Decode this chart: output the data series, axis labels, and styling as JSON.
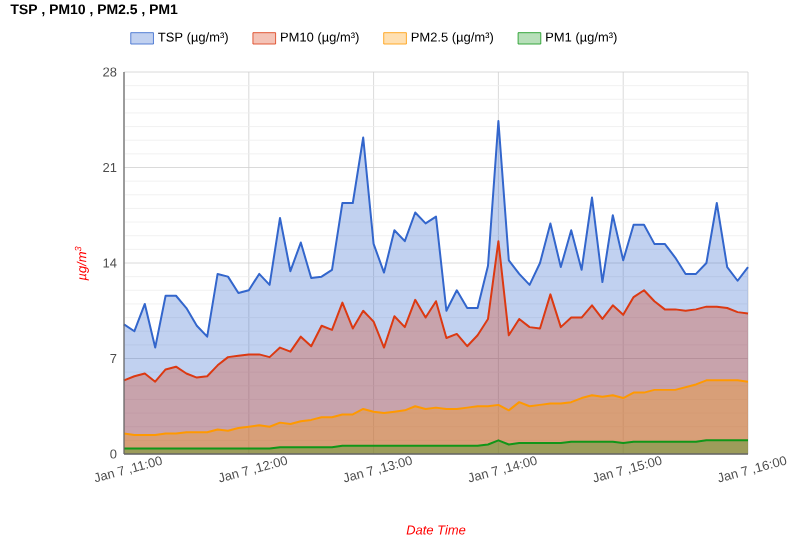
{
  "chart_data": {
    "type": "area",
    "title": "TSP , PM10 , PM2.5 , PM1",
    "xlabel": "Date Time",
    "ylabel": "µg/m$^{3}$",
    "categories": [
      "Jan 7 ,11:00",
      null,
      null,
      null,
      null,
      null,
      null,
      null,
      null,
      null,
      null,
      null,
      "Jan 7 ,12:00",
      null,
      null,
      null,
      null,
      null,
      null,
      null,
      null,
      null,
      null,
      null,
      "Jan 7 ,13:00",
      null,
      null,
      null,
      null,
      null,
      null,
      null,
      null,
      null,
      null,
      null,
      "Jan 7 ,14:00",
      null,
      null,
      null,
      null,
      null,
      null,
      null,
      null,
      null,
      null,
      null,
      "Jan 7 ,15:00",
      null,
      null,
      null,
      null,
      null,
      null,
      null,
      null,
      null,
      null,
      null,
      "Jan 7 ,16:00"
    ],
    "series": [
      {
        "name": "TSP (µg/m³)",
        "color": "#3366cc",
        "values": [
          9.5,
          9.0,
          11.0,
          7.8,
          11.6,
          11.6,
          10.7,
          9.4,
          8.6,
          13.2,
          13.0,
          11.8,
          12.0,
          13.2,
          12.4,
          17.3,
          13.4,
          15.5,
          12.9,
          13.0,
          13.5,
          18.4,
          18.4,
          23.2,
          15.4,
          13.3,
          16.4,
          15.6,
          17.7,
          16.9,
          17.4,
          10.5,
          12.0,
          10.7,
          10.7,
          13.8,
          24.4,
          14.2,
          13.2,
          12.4,
          14.0,
          16.9,
          13.7,
          16.4,
          13.5,
          18.8,
          12.6,
          17.5,
          14.2,
          16.8,
          16.8,
          15.4,
          15.4,
          14.4,
          13.2,
          13.2,
          14.0,
          18.4,
          13.7,
          12.7,
          13.7
        ]
      },
      {
        "name": "PM10 (µg/m³)",
        "color": "#dc3912",
        "values": [
          5.4,
          5.7,
          5.9,
          5.3,
          6.2,
          6.4,
          5.9,
          5.6,
          5.7,
          6.5,
          7.1,
          7.2,
          7.3,
          7.3,
          7.1,
          7.8,
          7.5,
          8.6,
          7.9,
          9.4,
          9.1,
          11.1,
          9.2,
          10.5,
          9.7,
          7.8,
          10.1,
          9.3,
          11.3,
          10.0,
          11.2,
          8.5,
          8.8,
          7.9,
          8.7,
          9.9,
          15.6,
          8.7,
          9.9,
          9.3,
          9.2,
          11.7,
          9.3,
          10.0,
          10.0,
          10.9,
          9.9,
          10.9,
          10.2,
          11.5,
          12.0,
          11.2,
          10.6,
          10.6,
          10.5,
          10.6,
          10.8,
          10.8,
          10.7,
          10.4,
          10.3
        ]
      },
      {
        "name": "PM2.5 (µg/m³)",
        "color": "#ff9900",
        "values": [
          1.5,
          1.4,
          1.4,
          1.4,
          1.5,
          1.5,
          1.6,
          1.6,
          1.6,
          1.8,
          1.7,
          1.9,
          2.0,
          2.1,
          2.0,
          2.3,
          2.2,
          2.4,
          2.5,
          2.7,
          2.7,
          2.9,
          2.9,
          3.3,
          3.1,
          3.0,
          3.1,
          3.2,
          3.5,
          3.3,
          3.4,
          3.3,
          3.3,
          3.4,
          3.5,
          3.5,
          3.6,
          3.2,
          3.8,
          3.5,
          3.6,
          3.7,
          3.7,
          3.8,
          4.1,
          4.3,
          4.2,
          4.3,
          4.1,
          4.5,
          4.5,
          4.7,
          4.7,
          4.7,
          4.9,
          5.1,
          5.4,
          5.4,
          5.4,
          5.4,
          5.3
        ]
      },
      {
        "name": "PM1 (µg/m³)",
        "color": "#109618",
        "values": [
          0.4,
          0.4,
          0.4,
          0.4,
          0.4,
          0.4,
          0.4,
          0.4,
          0.4,
          0.4,
          0.4,
          0.4,
          0.4,
          0.4,
          0.4,
          0.5,
          0.5,
          0.5,
          0.5,
          0.5,
          0.5,
          0.6,
          0.6,
          0.6,
          0.6,
          0.6,
          0.6,
          0.6,
          0.6,
          0.6,
          0.6,
          0.6,
          0.6,
          0.6,
          0.6,
          0.7,
          1.0,
          0.7,
          0.8,
          0.8,
          0.8,
          0.8,
          0.8,
          0.9,
          0.9,
          0.9,
          0.9,
          0.9,
          0.8,
          0.9,
          0.9,
          0.9,
          0.9,
          0.9,
          0.9,
          0.9,
          1.0,
          1.0,
          1.0,
          1.0,
          1.0
        ]
      }
    ],
    "ylim": [
      0,
      28
    ],
    "yticks": [
      0,
      7,
      14,
      21,
      28
    ],
    "grid": true,
    "legend": "top"
  }
}
